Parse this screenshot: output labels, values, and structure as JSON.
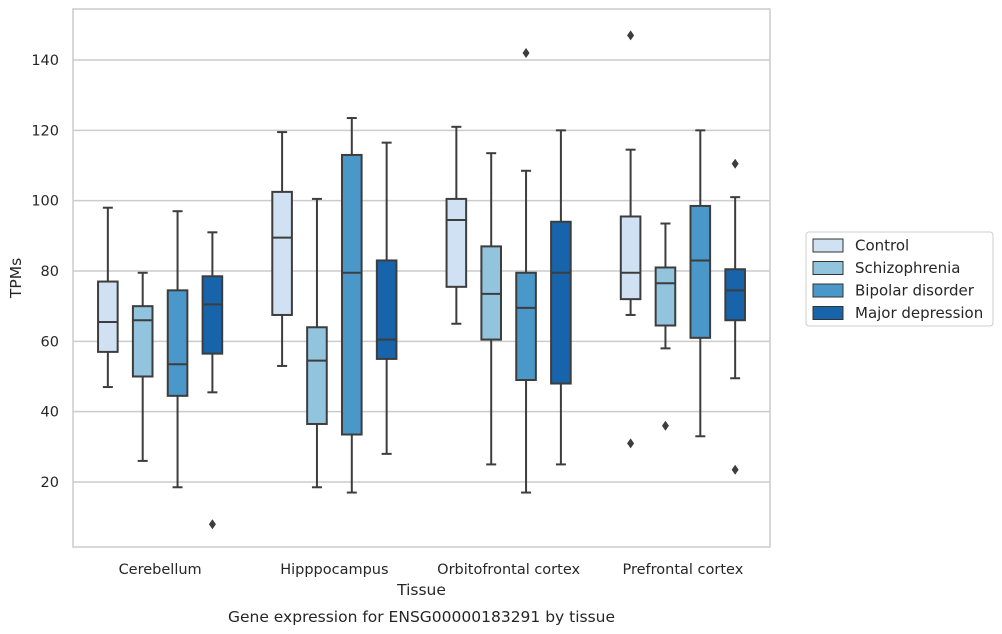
{
  "chart_data": {
    "type": "box",
    "caption": "Gene expression for ENSG00000183291 by tissue",
    "xlabel": "Tissue",
    "ylabel": "TPMs",
    "ylim": [
      1,
      155
    ],
    "yticks": [
      20,
      40,
      60,
      80,
      100,
      120,
      140
    ],
    "grid": "horizontal",
    "legend_position": "right",
    "categories": [
      "Cerebellum",
      "Hipppocampus",
      "Orbitofrontal cortex",
      "Prefrontal cortex"
    ],
    "series": [
      {
        "name": "Control",
        "color": "#cfe1f2",
        "boxes": [
          {
            "whisker_low": 47,
            "q1": 57,
            "median": 65.5,
            "q3": 77,
            "whisker_high": 98,
            "outliers": []
          },
          {
            "whisker_low": 53,
            "q1": 67.5,
            "median": 89.5,
            "q3": 102.5,
            "whisker_high": 119.5,
            "outliers": []
          },
          {
            "whisker_low": 65,
            "q1": 75.5,
            "median": 94.5,
            "q3": 100.5,
            "whisker_high": 121,
            "outliers": []
          },
          {
            "whisker_low": 67.5,
            "q1": 72,
            "median": 79.5,
            "q3": 95.5,
            "whisker_high": 114.5,
            "outliers": [
              31,
              147
            ]
          }
        ]
      },
      {
        "name": "Schizophrenia",
        "color": "#93c4de",
        "boxes": [
          {
            "whisker_low": 26,
            "q1": 50,
            "median": 66,
            "q3": 70,
            "whisker_high": 79.5,
            "outliers": []
          },
          {
            "whisker_low": 18.5,
            "q1": 36.5,
            "median": 54.5,
            "q3": 64,
            "whisker_high": 100.5,
            "outliers": []
          },
          {
            "whisker_low": 25,
            "q1": 60.5,
            "median": 73.5,
            "q3": 87,
            "whisker_high": 113.5,
            "outliers": []
          },
          {
            "whisker_low": 58,
            "q1": 64.5,
            "median": 76.5,
            "q3": 81,
            "whisker_high": 93.5,
            "outliers": [
              36
            ]
          }
        ]
      },
      {
        "name": "Bipolar disorder",
        "color": "#4a98c9",
        "boxes": [
          {
            "whisker_low": 18.5,
            "q1": 44.5,
            "median": 53.5,
            "q3": 74.5,
            "whisker_high": 97,
            "outliers": []
          },
          {
            "whisker_low": 17,
            "q1": 33.5,
            "median": 79.5,
            "q3": 113,
            "whisker_high": 123.5,
            "outliers": []
          },
          {
            "whisker_low": 17,
            "q1": 49,
            "median": 69.5,
            "q3": 79.5,
            "whisker_high": 108.5,
            "outliers": [
              142
            ]
          },
          {
            "whisker_low": 33,
            "q1": 61,
            "median": 83,
            "q3": 98.5,
            "whisker_high": 120,
            "outliers": []
          }
        ]
      },
      {
        "name": "Major depression",
        "color": "#1764ab",
        "boxes": [
          {
            "whisker_low": 45.5,
            "q1": 56.5,
            "median": 70.5,
            "q3": 78.5,
            "whisker_high": 91,
            "outliers": [
              8
            ]
          },
          {
            "whisker_low": 28,
            "q1": 55,
            "median": 60.5,
            "q3": 83,
            "whisker_high": 116.5,
            "outliers": []
          },
          {
            "whisker_low": 25,
            "q1": 48,
            "median": 79.5,
            "q3": 94,
            "whisker_high": 120,
            "outliers": []
          },
          {
            "whisker_low": 49.5,
            "q1": 66,
            "median": 74.5,
            "q3": 80.5,
            "whisker_high": 101,
            "outliers": [
              23.5,
              110.5
            ]
          }
        ]
      }
    ]
  }
}
